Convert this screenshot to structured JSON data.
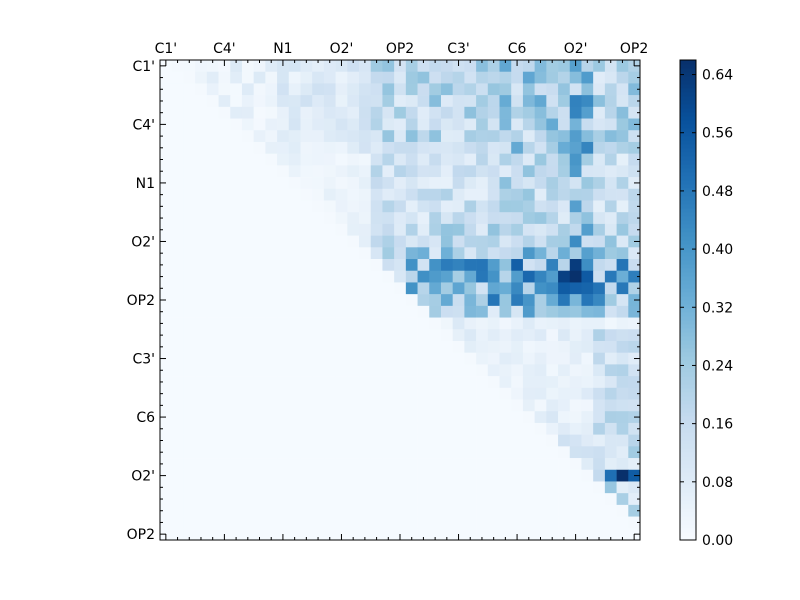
{
  "chart_data": {
    "type": "heatmap",
    "title": "",
    "xlabel": "",
    "ylabel": "",
    "grid": false,
    "colormap": "Blues",
    "n": 41,
    "x_tick_labels": [
      "C1'",
      "C4'",
      "N1",
      "O2'",
      "OP2",
      "C3'",
      "C6",
      "O2'",
      "OP2"
    ],
    "y_tick_labels": [
      "C1'",
      "C4'",
      "N1",
      "O2'",
      "OP2",
      "C3'",
      "C6",
      "O2'",
      "OP2"
    ],
    "tick_positions": [
      0.5,
      5.5,
      10.5,
      15.5,
      20.5,
      25.5,
      30.5,
      35.5,
      40.5
    ],
    "colorbar": {
      "min": 0.0,
      "max": 0.66,
      "tick_values": [
        0.0,
        0.08,
        0.16,
        0.24,
        0.32,
        0.4,
        0.48,
        0.56,
        0.64
      ],
      "tick_labels": [
        "0.00",
        "0.08",
        "0.16",
        "0.24",
        "0.32",
        "0.40",
        "0.48",
        "0.56",
        "0.64"
      ]
    },
    "hot_cells": [
      {
        "row": 35,
        "col": 39,
        "value": 0.66
      },
      {
        "row": 35,
        "col": 40,
        "value": 0.55
      },
      {
        "row": 35,
        "col": 38,
        "value": 0.5
      },
      {
        "row": 18,
        "col": 34,
        "value": 0.62
      },
      {
        "row": 19,
        "col": 34,
        "value": 0.55
      },
      {
        "row": 20,
        "col": 34,
        "value": 0.48
      }
    ]
  }
}
